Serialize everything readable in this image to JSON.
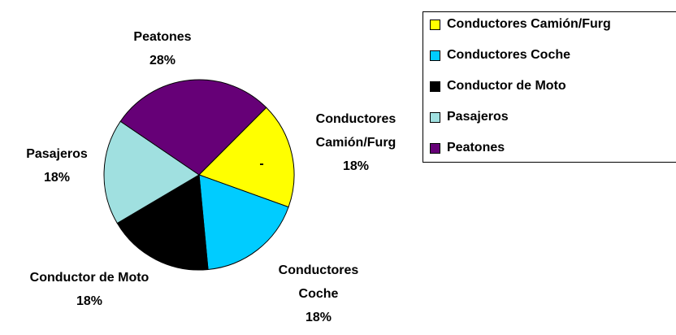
{
  "chart_data": {
    "type": "pie",
    "categories": [
      "Conductores Camión/Furg",
      "Conductores Coche",
      "Conductor de Moto",
      "Pasajeros",
      "Peatones"
    ],
    "values": [
      18,
      18,
      18,
      18,
      28
    ],
    "value_labels": [
      "18%",
      "18%",
      "18%",
      "18%",
      "28%"
    ],
    "colors": [
      "#ffff00",
      "#00ccff",
      "#000000",
      "#a0e0e0",
      "#660077"
    ],
    "annotation": "-",
    "legend": "right"
  }
}
